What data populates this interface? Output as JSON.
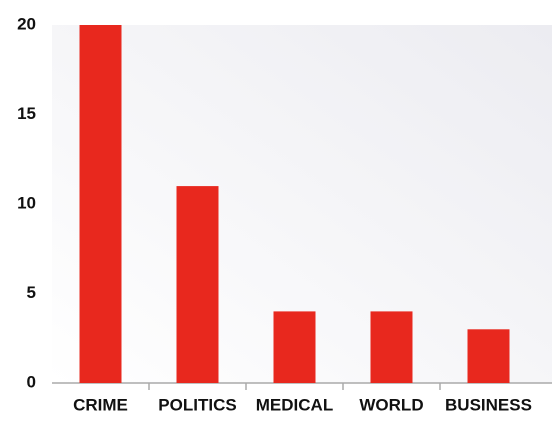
{
  "chart_data": {
    "type": "bar",
    "categories": [
      "CRIME",
      "POLITICS",
      "MEDICAL",
      "WORLD",
      "BUSINESS"
    ],
    "values": [
      20,
      11,
      4,
      4,
      3
    ],
    "color": "#e8281e",
    "ylim": [
      0,
      20
    ],
    "yticks": [
      0,
      5,
      10,
      15,
      20
    ],
    "grid": false
  }
}
